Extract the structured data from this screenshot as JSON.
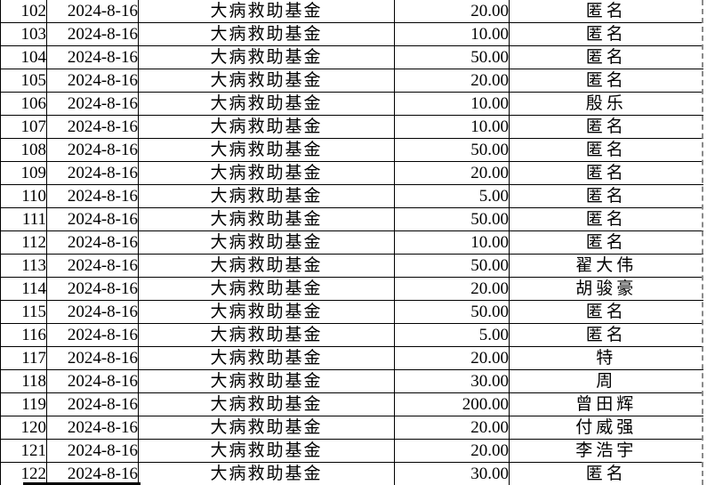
{
  "colors": {
    "grid_border": "#000000",
    "page_break_line": "#8a8a8a",
    "text": "#000000",
    "background": "#ffffff"
  },
  "table": {
    "rows": [
      {
        "id": "102",
        "date": "2024-8-16",
        "fund": "大病救助基金",
        "amount": "20.00",
        "donor": "匿名"
      },
      {
        "id": "103",
        "date": "2024-8-16",
        "fund": "大病救助基金",
        "amount": "10.00",
        "donor": "匿名"
      },
      {
        "id": "104",
        "date": "2024-8-16",
        "fund": "大病救助基金",
        "amount": "50.00",
        "donor": "匿名"
      },
      {
        "id": "105",
        "date": "2024-8-16",
        "fund": "大病救助基金",
        "amount": "20.00",
        "donor": "匿名"
      },
      {
        "id": "106",
        "date": "2024-8-16",
        "fund": "大病救助基金",
        "amount": "10.00",
        "donor": "殷乐"
      },
      {
        "id": "107",
        "date": "2024-8-16",
        "fund": "大病救助基金",
        "amount": "10.00",
        "donor": "匿名"
      },
      {
        "id": "108",
        "date": "2024-8-16",
        "fund": "大病救助基金",
        "amount": "50.00",
        "donor": "匿名"
      },
      {
        "id": "109",
        "date": "2024-8-16",
        "fund": "大病救助基金",
        "amount": "20.00",
        "donor": "匿名"
      },
      {
        "id": "110",
        "date": "2024-8-16",
        "fund": "大病救助基金",
        "amount": "5.00",
        "donor": "匿名"
      },
      {
        "id": "111",
        "date": "2024-8-16",
        "fund": "大病救助基金",
        "amount": "50.00",
        "donor": "匿名"
      },
      {
        "id": "112",
        "date": "2024-8-16",
        "fund": "大病救助基金",
        "amount": "10.00",
        "donor": "匿名"
      },
      {
        "id": "113",
        "date": "2024-8-16",
        "fund": "大病救助基金",
        "amount": "50.00",
        "donor": "翟大伟"
      },
      {
        "id": "114",
        "date": "2024-8-16",
        "fund": "大病救助基金",
        "amount": "20.00",
        "donor": "胡骏豪"
      },
      {
        "id": "115",
        "date": "2024-8-16",
        "fund": "大病救助基金",
        "amount": "50.00",
        "donor": "匿名"
      },
      {
        "id": "116",
        "date": "2024-8-16",
        "fund": "大病救助基金",
        "amount": "5.00",
        "donor": "匿名"
      },
      {
        "id": "117",
        "date": "2024-8-16",
        "fund": "大病救助基金",
        "amount": "20.00",
        "donor": "特"
      },
      {
        "id": "118",
        "date": "2024-8-16",
        "fund": "大病救助基金",
        "amount": "30.00",
        "donor": "周"
      },
      {
        "id": "119",
        "date": "2024-8-16",
        "fund": "大病救助基金",
        "amount": "200.00",
        "donor": "曾田辉"
      },
      {
        "id": "120",
        "date": "2024-8-16",
        "fund": "大病救助基金",
        "amount": "20.00",
        "donor": "付威强"
      },
      {
        "id": "121",
        "date": "2024-8-16",
        "fund": "大病救助基金",
        "amount": "20.00",
        "donor": "李浩宇"
      },
      {
        "id": "122",
        "date": "2024-8-16",
        "fund": "大病救助基金",
        "amount": "30.00",
        "donor": "匿名"
      }
    ]
  }
}
